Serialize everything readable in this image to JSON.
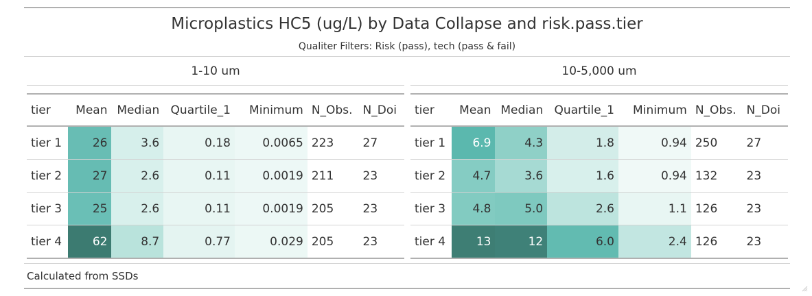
{
  "header": {
    "title": "Microplastics HC5 (ug/L) by Data Collapse and risk.pass.tier",
    "subtitle": "Qualiter Filters: Risk (pass), tech (pass & fail)"
  },
  "columns": [
    "tier",
    "Mean",
    "Median",
    "Quartile_1",
    "Minimum",
    "N_Obs.",
    "N_Doi"
  ],
  "groups": [
    {
      "label": "1-10 um",
      "rows": [
        {
          "tier": "tier 1",
          "mean": "26",
          "median": "3.6",
          "q1": "0.18",
          "min": "0.0065",
          "nobs": "223",
          "ndoi": "27"
        },
        {
          "tier": "tier 2",
          "mean": "27",
          "median": "2.6",
          "q1": "0.11",
          "min": "0.0019",
          "nobs": "211",
          "ndoi": "23"
        },
        {
          "tier": "tier 3",
          "mean": "25",
          "median": "2.6",
          "q1": "0.11",
          "min": "0.0019",
          "nobs": "205",
          "ndoi": "23"
        },
        {
          "tier": "tier 4",
          "mean": "62",
          "median": "8.7",
          "q1": "0.77",
          "min": "0.029",
          "nobs": "205",
          "ndoi": "23"
        }
      ],
      "colors": [
        [
          "#68bdb4",
          "#d6efeb",
          "#e8f6f3",
          "#edf8f6"
        ],
        [
          "#66bcb3",
          "#d8f0ec",
          "#e8f6f3",
          "#edf8f6"
        ],
        [
          "#6abfb6",
          "#d8f0ec",
          "#e8f6f3",
          "#edf8f6"
        ],
        [
          "#3c7b71",
          "#b9e3dc",
          "#e4f4f1",
          "#ecf8f5"
        ]
      ],
      "dark_cells": [
        [
          false,
          false,
          false,
          false
        ],
        [
          false,
          false,
          false,
          false
        ],
        [
          false,
          false,
          false,
          false
        ],
        [
          true,
          false,
          false,
          false
        ]
      ]
    },
    {
      "label": "10-5,000 um",
      "rows": [
        {
          "tier": "tier 1",
          "mean": "6.9",
          "median": "4.3",
          "q1": "1.8",
          "min": "0.94",
          "nobs": "250",
          "ndoi": "27"
        },
        {
          "tier": "tier 2",
          "mean": "4.7",
          "median": "3.6",
          "q1": "1.6",
          "min": "0.94",
          "nobs": "132",
          "ndoi": "23"
        },
        {
          "tier": "tier 3",
          "mean": "4.8",
          "median": "5.0",
          "q1": "2.6",
          "min": "1.1",
          "nobs": "126",
          "ndoi": "23"
        },
        {
          "tier": "tier 4",
          "mean": "13",
          "median": "12",
          "q1": "6.0",
          "min": "2.4",
          "nobs": "126",
          "ndoi": "23"
        }
      ],
      "colors": [
        [
          "#5bb8ae",
          "#8fd0c7",
          "#d3ede9",
          "#f0f9f7"
        ],
        [
          "#85ccc3",
          "#a6dad3",
          "#d8f0ec",
          "#f0f9f7"
        ],
        [
          "#82cbc1",
          "#7ec9bf",
          "#bde4de",
          "#e8f6f3"
        ],
        [
          "#3e7e74",
          "#3f8178",
          "#62bbb1",
          "#c2e6e1"
        ]
      ],
      "dark_cells": [
        [
          true,
          false,
          false,
          false
        ],
        [
          false,
          false,
          false,
          false
        ],
        [
          false,
          false,
          false,
          false
        ],
        [
          true,
          true,
          false,
          false
        ]
      ]
    }
  ],
  "footer": {
    "note": "Calculated from SSDs"
  }
}
